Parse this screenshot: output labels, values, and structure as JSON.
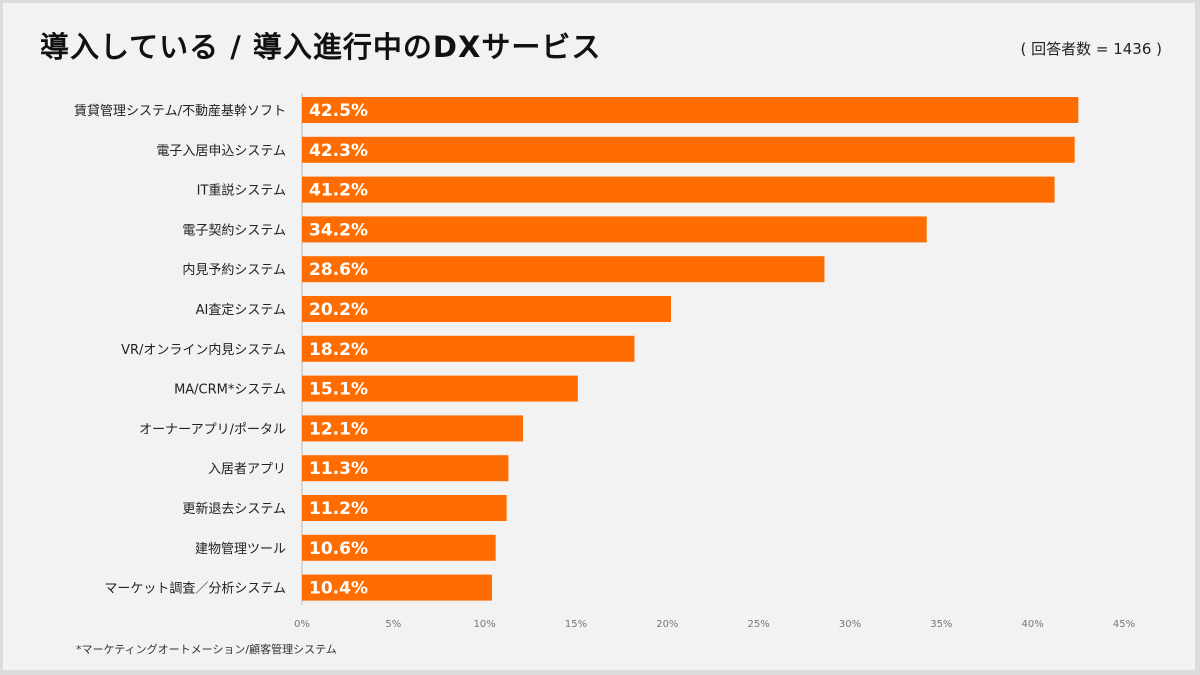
{
  "chart_data": {
    "type": "bar",
    "orientation": "horizontal",
    "title": "導入している / 導入進行中のDXサービス",
    "respondents_note": "( 回答者数 = 1436 )",
    "footnote": "*マーケティングオートメーション/顧客管理システム",
    "categories": [
      "賃貸管理システム/不動産基幹ソフト",
      "電子入居申込システム",
      "IT重説システム",
      "電子契約システム",
      "内見予約システム",
      "AI査定システム",
      "VR/オンライン内見システム",
      "MA/CRM*システム",
      "オーナーアプリ/ポータル",
      "入居者アプリ",
      "更新退去システム",
      "建物管理ツール",
      "マーケット調査／分析システム"
    ],
    "values": [
      42.5,
      42.3,
      41.2,
      34.2,
      28.6,
      20.2,
      18.2,
      15.1,
      12.1,
      11.3,
      11.2,
      10.6,
      10.4
    ],
    "data_labels": [
      "42.5%",
      "42.3%",
      "41.2%",
      "34.2%",
      "28.6%",
      "20.2%",
      "18.2%",
      "15.1%",
      "12.1%",
      "11.3%",
      "11.2%",
      "10.6%",
      "10.4%"
    ],
    "xlim": [
      0,
      45
    ],
    "xticks": [
      "0%",
      "5%",
      "10%",
      "15%",
      "20%",
      "25%",
      "30%",
      "35%",
      "40%",
      "45%"
    ],
    "grid": false,
    "bar_color": "#ff6d00"
  }
}
